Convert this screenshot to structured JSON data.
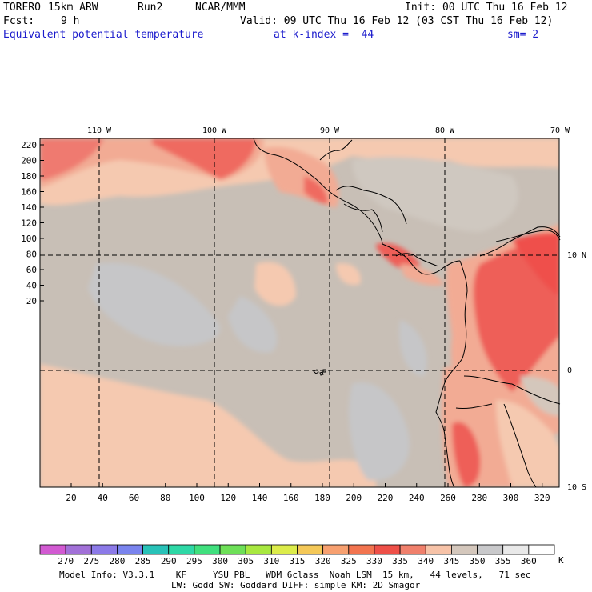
{
  "header": {
    "model": "TORERO",
    "resolution": "15km ARW",
    "run": "Run2",
    "org": "NCAR/MMM",
    "init": "Init: 00 UTC Thu 16 Feb 12",
    "fcst_label": "Fcst:",
    "fcst_value": "9 h",
    "valid": "Valid: 09 UTC Thu 16 Feb 12 (03 CST Thu 16 Feb 12)",
    "field": "Equivalent potential temperature",
    "level": "at k-index =  44",
    "smoothing": "sm= 2"
  },
  "map": {
    "top_lon_labels": [
      "110 W",
      "100 W",
      "90 W",
      "80 W",
      "70 W"
    ],
    "right_lat_labels": [
      "10 N",
      "0",
      "10 S"
    ],
    "y_ticks": [
      "220",
      "200",
      "180",
      "160",
      "140",
      "120",
      "100",
      "80",
      "60",
      "40",
      "20"
    ],
    "x_ticks": [
      "20",
      "40",
      "60",
      "80",
      "100",
      "120",
      "140",
      "160",
      "180",
      "200",
      "220",
      "240",
      "260",
      "280",
      "300",
      "320"
    ],
    "colors": {
      "ocean_base": "#c8bfb6",
      "cool_patch": "#c6c6c8",
      "warm_340": "#f5c9b0",
      "warm_335": "#f2ab94",
      "warm_330": "#ef7a70",
      "hot_325": "#ee5e58",
      "hot_320": "#f48a6a",
      "coast": "#000000"
    }
  },
  "colorbar": {
    "labels": [
      "270",
      "275",
      "280",
      "285",
      "290",
      "295",
      "300",
      "305",
      "310",
      "315",
      "320",
      "325",
      "330",
      "335",
      "340",
      "345",
      "350",
      "355",
      "360"
    ],
    "unit": "K",
    "colors": [
      "#d25ad2",
      "#a271d8",
      "#8c7ae8",
      "#7a84ee",
      "#28c2b8",
      "#2ed8a6",
      "#40e07e",
      "#6ee058",
      "#a8e840",
      "#dcec4a",
      "#f4c858",
      "#f7a070",
      "#f2744f",
      "#ee5048",
      "#f0806c",
      "#f7c3a8",
      "#d4c7bc",
      "#c9c9cb",
      "#e9e9e9",
      "#ffffff"
    ]
  },
  "footer": {
    "line1": "Model Info: V3.3.1    KF     YSU PBL   WDM 6class  Noah LSM  15 km,   44 levels,   71 sec",
    "line2": "LW: Godd SW: Goddard DIFF: simple KM: 2D Smagor"
  }
}
